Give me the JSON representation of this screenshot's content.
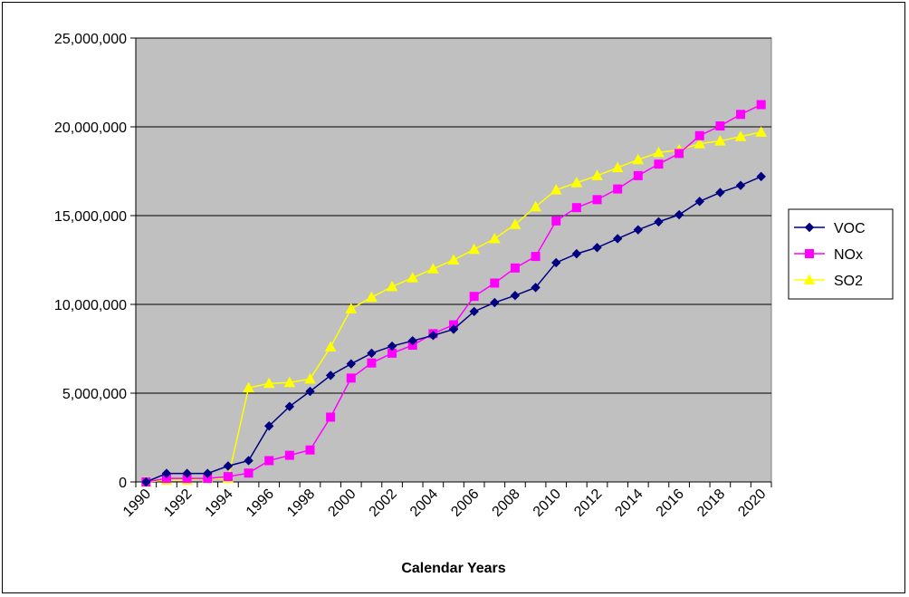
{
  "chart_data": {
    "type": "line",
    "title": "",
    "xlabel": "Calendar Years",
    "ylabel": "",
    "ylim": [
      0,
      25000000
    ],
    "yticks": [
      0,
      5000000,
      10000000,
      15000000,
      20000000,
      25000000
    ],
    "ytick_labels": [
      "0",
      "5,000,000",
      "10,000,000",
      "15,000,000",
      "20,000,000",
      "25,000,000"
    ],
    "xticks": [
      "1990",
      "1992",
      "1994",
      "1996",
      "1998",
      "2000",
      "2002",
      "2004",
      "2006",
      "2008",
      "2010",
      "2012",
      "2014",
      "2016",
      "2018",
      "2020"
    ],
    "x": [
      1990,
      1991,
      1992,
      1993,
      1994,
      1995,
      1996,
      1997,
      1998,
      1999,
      2000,
      2001,
      2002,
      2003,
      2004,
      2005,
      2006,
      2007,
      2008,
      2009,
      2010,
      2011,
      2012,
      2013,
      2014,
      2015,
      2016,
      2017,
      2018,
      2019,
      2020
    ],
    "grid": "horizontal",
    "plot_background": "#c0c0c0",
    "legend_position": "right",
    "series": [
      {
        "name": "VOC",
        "color": "#000080",
        "marker": "diamond",
        "values": [
          0,
          480000,
          480000,
          480000,
          900000,
          1200000,
          3150000,
          4250000,
          5100000,
          6000000,
          6650000,
          7250000,
          7650000,
          7950000,
          8250000,
          8600000,
          9600000,
          10100000,
          10500000,
          10950000,
          12350000,
          12850000,
          13200000,
          13700000,
          14200000,
          14650000,
          15050000,
          15800000,
          16300000,
          16700000,
          17200000
        ]
      },
      {
        "name": "NOx",
        "color": "#ff00ff",
        "marker": "square",
        "values": [
          0,
          200000,
          200000,
          200000,
          300000,
          500000,
          1200000,
          1500000,
          1800000,
          3650000,
          5850000,
          6700000,
          7250000,
          7700000,
          8350000,
          8850000,
          10450000,
          11200000,
          12050000,
          12700000,
          14700000,
          15450000,
          15900000,
          16500000,
          17250000,
          17900000,
          18500000,
          19500000,
          20050000,
          20700000,
          21250000
        ]
      },
      {
        "name": "SO2",
        "color": "#ffff00",
        "marker": "triangle",
        "values": [
          0,
          100000,
          100000,
          200000,
          200000,
          5300000,
          5550000,
          5600000,
          5800000,
          7600000,
          9750000,
          10400000,
          11000000,
          11500000,
          12000000,
          12500000,
          13100000,
          13700000,
          14500000,
          15500000,
          16450000,
          16850000,
          17250000,
          17700000,
          18150000,
          18550000,
          18700000,
          19050000,
          19200000,
          19450000,
          19700000
        ]
      }
    ]
  }
}
